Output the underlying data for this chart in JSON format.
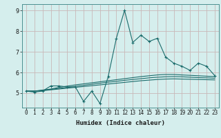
{
  "xlabel": "Humidex (Indice chaleur)",
  "ylabel": "",
  "background_color": "#d5eeed",
  "grid_color": "#c8b8b8",
  "line_color": "#1a6b6b",
  "spine_color": "#4a9090",
  "x_values": [
    0,
    1,
    2,
    3,
    4,
    5,
    6,
    7,
    8,
    9,
    10,
    11,
    12,
    13,
    14,
    15,
    16,
    17,
    18,
    19,
    20,
    21,
    22,
    23
  ],
  "y_main": [
    5.1,
    5.05,
    5.1,
    5.35,
    5.35,
    5.3,
    5.3,
    4.6,
    5.1,
    4.5,
    5.8,
    7.65,
    9.0,
    7.45,
    7.8,
    7.5,
    7.65,
    6.75,
    6.45,
    6.3,
    6.1,
    6.45,
    6.3,
    5.85
  ],
  "y_line2": [
    5.1,
    5.1,
    5.15,
    5.2,
    5.28,
    5.34,
    5.4,
    5.45,
    5.5,
    5.55,
    5.6,
    5.65,
    5.7,
    5.75,
    5.8,
    5.84,
    5.88,
    5.9,
    5.9,
    5.88,
    5.86,
    5.84,
    5.82,
    5.8
  ],
  "y_line3": [
    5.1,
    5.1,
    5.13,
    5.18,
    5.23,
    5.28,
    5.33,
    5.38,
    5.43,
    5.48,
    5.53,
    5.57,
    5.62,
    5.66,
    5.7,
    5.74,
    5.77,
    5.79,
    5.8,
    5.79,
    5.77,
    5.75,
    5.74,
    5.72
  ],
  "y_line4": [
    5.1,
    5.1,
    5.12,
    5.16,
    5.2,
    5.24,
    5.28,
    5.32,
    5.36,
    5.4,
    5.44,
    5.48,
    5.52,
    5.56,
    5.6,
    5.63,
    5.66,
    5.68,
    5.69,
    5.68,
    5.67,
    5.66,
    5.65,
    5.64
  ],
  "ylim": [
    4.3,
    9.3
  ],
  "yticks": [
    5,
    6,
    7,
    8,
    9
  ],
  "xlim": [
    -0.5,
    23.5
  ],
  "tick_fontsize": 5.5,
  "xlabel_fontsize": 6.5
}
